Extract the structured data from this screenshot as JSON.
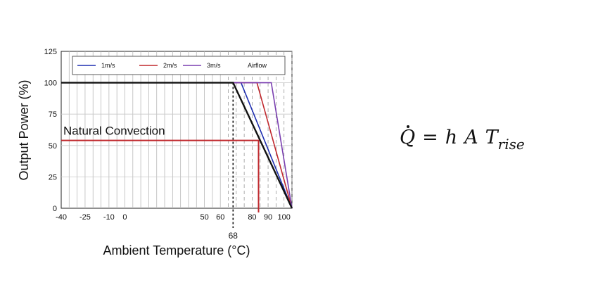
{
  "chart_data": {
    "type": "line",
    "title": "",
    "xlabel": "Ambient Temperature (°C)",
    "ylabel": "Output Power (%)",
    "xlim": [
      -40,
      105
    ],
    "ylim": [
      0,
      125
    ],
    "x_ticks": [
      -40,
      -25,
      -10,
      0,
      50,
      60,
      80,
      90,
      100
    ],
    "x_tick_labels": [
      "-40",
      "-25",
      "-10",
      "0",
      "50",
      "60",
      "80",
      "90",
      "100"
    ],
    "y_ticks": [
      0,
      25,
      50,
      75,
      100,
      125
    ],
    "y_tick_labels": [
      "0",
      "25",
      "50",
      "75",
      "100",
      "125"
    ],
    "grid": true,
    "legend_position": "top",
    "series": [
      {
        "name": "1m/s",
        "color": "#1f2fb0",
        "x": [
          -40,
          73,
          105
        ],
        "y": [
          100,
          100,
          0
        ]
      },
      {
        "name": "2m/s",
        "color": "#c0282d",
        "x": [
          -40,
          83,
          105
        ],
        "y": [
          100,
          100,
          0
        ]
      },
      {
        "name": "3m/s",
        "color": "#7a3fb0",
        "x": [
          -40,
          92,
          105
        ],
        "y": [
          100,
          100,
          0
        ]
      },
      {
        "name": "Airflow",
        "color": "#111111",
        "x": [
          -40,
          68,
          105
        ],
        "y": [
          100,
          100,
          0
        ]
      }
    ],
    "annotations": [
      {
        "text": "Natural Convection",
        "color": "#c0282d",
        "y": 54,
        "x": 84
      },
      {
        "text": "68",
        "x": 68
      }
    ]
  },
  "equation": {
    "q": "Q",
    "equals": "=",
    "h": "h",
    "a": "A",
    "t": "T",
    "t_sub": "rise"
  }
}
